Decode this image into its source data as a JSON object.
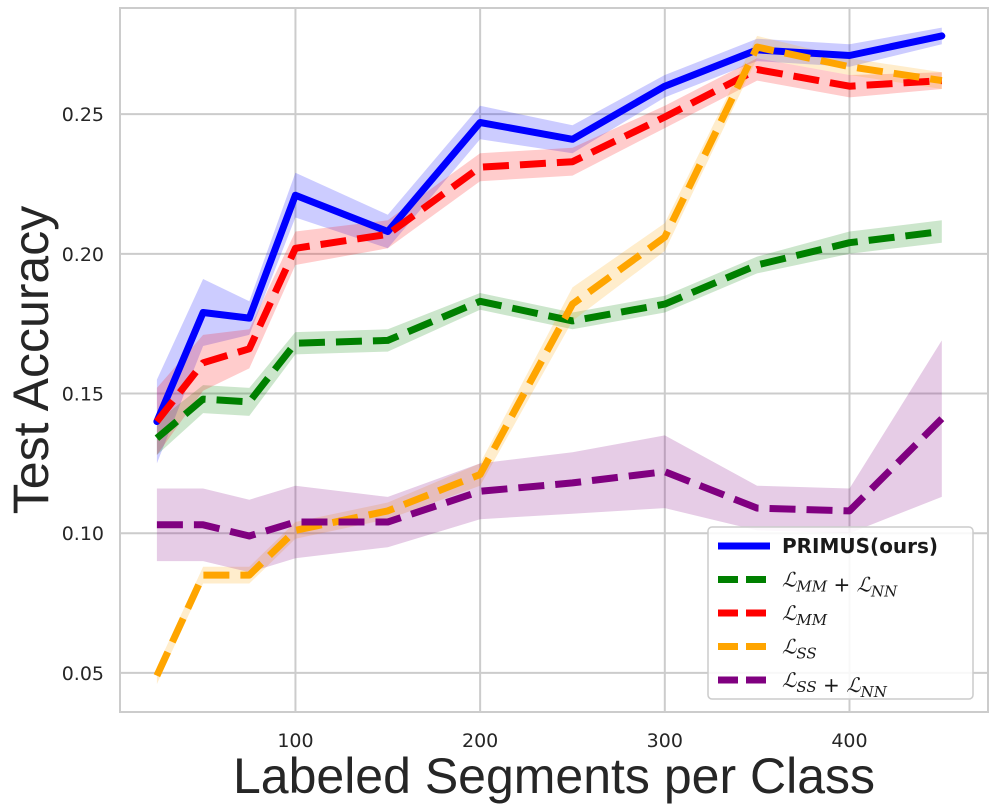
{
  "chart_data": {
    "type": "line",
    "xlabel": "Labeled Segments per Class",
    "ylabel": "Test Accuracy",
    "xlim": [
      5,
      475
    ],
    "ylim": [
      0.036,
      0.288
    ],
    "xticks": [
      100,
      200,
      300,
      400
    ],
    "yticks": [
      0.05,
      0.1,
      0.15,
      0.2,
      0.25
    ],
    "xtick_labels": [
      "100",
      "200",
      "300",
      "400"
    ],
    "ytick_labels": [
      "0.05",
      "0.10",
      "0.15",
      "0.20",
      "0.25"
    ],
    "grid": true,
    "legend_position": "bottom-right",
    "series": [
      {
        "name": "PRIMUS(ours)",
        "label": "PRIMUS(ours)",
        "color": "#0000ff",
        "style": "solid",
        "x": [
          25,
          50,
          75,
          100,
          150,
          200,
          250,
          300,
          350,
          400,
          450
        ],
        "values": [
          0.14,
          0.179,
          0.177,
          0.221,
          0.208,
          0.247,
          0.241,
          0.26,
          0.273,
          0.271,
          0.278
        ],
        "err": [
          0.015,
          0.012,
          0.006,
          0.008,
          0.006,
          0.006,
          0.005,
          0.004,
          0.004,
          0.004,
          0.003
        ]
      },
      {
        "name": "L_MM + L_NN",
        "label_parts": [
          [
            "L",
            "MM"
          ],
          [
            "L",
            "NN"
          ]
        ],
        "color": "#008000",
        "style": "dashed",
        "x": [
          25,
          50,
          75,
          100,
          150,
          200,
          250,
          300,
          350,
          400,
          450
        ],
        "values": [
          0.134,
          0.148,
          0.147,
          0.168,
          0.169,
          0.183,
          0.176,
          0.182,
          0.196,
          0.204,
          0.208
        ],
        "err": [
          0.006,
          0.005,
          0.005,
          0.004,
          0.004,
          0.003,
          0.003,
          0.003,
          0.003,
          0.004,
          0.004
        ]
      },
      {
        "name": "L_MM",
        "label_parts": [
          [
            "L",
            "MM"
          ]
        ],
        "color": "#ff0000",
        "style": "dashed",
        "x": [
          25,
          50,
          75,
          100,
          150,
          200,
          250,
          300,
          350,
          400,
          450
        ],
        "values": [
          0.14,
          0.161,
          0.166,
          0.202,
          0.207,
          0.231,
          0.233,
          0.249,
          0.266,
          0.26,
          0.262
        ],
        "err": [
          0.012,
          0.01,
          0.007,
          0.006,
          0.005,
          0.005,
          0.005,
          0.004,
          0.004,
          0.004,
          0.003
        ]
      },
      {
        "name": "L_SS",
        "label_parts": [
          [
            "L",
            "SS"
          ]
        ],
        "color": "#ffa500",
        "style": "dashed",
        "x": [
          25,
          50,
          75,
          100,
          150,
          200,
          250,
          300,
          350,
          400,
          450
        ],
        "values": [
          0.049,
          0.085,
          0.085,
          0.101,
          0.108,
          0.121,
          0.182,
          0.206,
          0.274,
          0.267,
          0.262
        ],
        "err": [
          0.003,
          0.003,
          0.003,
          0.003,
          0.003,
          0.004,
          0.006,
          0.005,
          0.004,
          0.003,
          0.003
        ]
      },
      {
        "name": "L_SS + L_NN",
        "label_parts": [
          [
            "L",
            "SS"
          ],
          [
            "L",
            "NN"
          ]
        ],
        "color": "#800080",
        "style": "dashed",
        "x": [
          25,
          50,
          75,
          100,
          150,
          200,
          250,
          300,
          350,
          400,
          450
        ],
        "values": [
          0.103,
          0.103,
          0.099,
          0.104,
          0.104,
          0.115,
          0.118,
          0.122,
          0.109,
          0.108,
          0.141
        ],
        "err": [
          0.013,
          0.013,
          0.013,
          0.013,
          0.009,
          0.01,
          0.011,
          0.013,
          0.008,
          0.008,
          0.028
        ]
      }
    ]
  }
}
